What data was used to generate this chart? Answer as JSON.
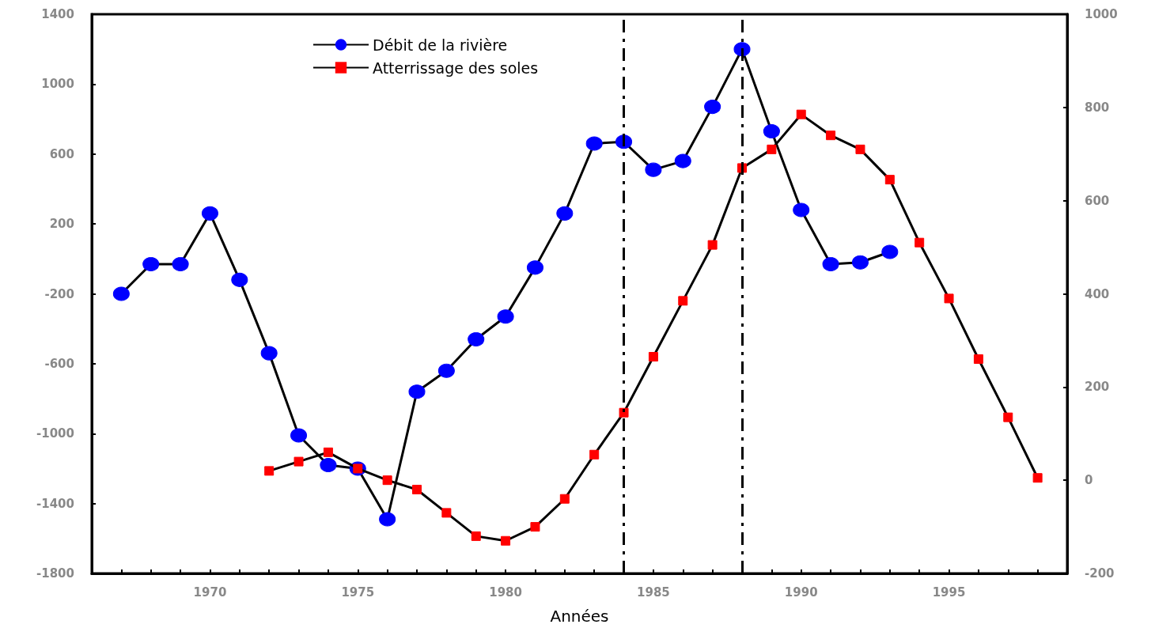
{
  "chart_data": {
    "type": "line",
    "xlabel": "Années",
    "x": [
      1967,
      1968,
      1969,
      1970,
      1971,
      1972,
      1973,
      1974,
      1975,
      1976,
      1977,
      1978,
      1979,
      1980,
      1981,
      1982,
      1983,
      1984,
      1985,
      1986,
      1987,
      1988,
      1989,
      1990,
      1991,
      1992,
      1993,
      1994,
      1995,
      1996,
      1997,
      1998
    ],
    "series": [
      {
        "name": "Débit de la rivière",
        "color": "#0000ff",
        "marker": "circle",
        "values": [
          -200,
          -30,
          -30,
          260,
          -120,
          -540,
          -1010,
          -1180,
          -1200,
          -1490,
          -760,
          -640,
          -460,
          -330,
          -50,
          260,
          660,
          670,
          510,
          560,
          870,
          1200,
          730,
          280,
          -30,
          -20,
          40,
          null,
          null,
          null,
          null,
          null
        ]
      },
      {
        "name": "Atterrissage des soles",
        "color": "#ff0000",
        "marker": "square",
        "axis": "y2",
        "values": [
          null,
          null,
          null,
          null,
          null,
          20,
          40,
          60,
          25,
          0,
          -20,
          -70,
          -120,
          -130,
          -100,
          -40,
          55,
          145,
          265,
          385,
          505,
          670,
          710,
          785,
          740,
          710,
          645,
          510,
          390,
          260,
          135,
          5
        ]
      }
    ],
    "xlim": [
      1966,
      1999
    ],
    "xticks": [
      {
        "value": 1967,
        "label": null
      },
      {
        "value": 1968,
        "label": null
      },
      {
        "value": 1969,
        "label": null
      },
      1970,
      {
        "value": 1971,
        "label": null
      },
      {
        "value": 1972,
        "label": null
      },
      {
        "value": 1973,
        "label": null
      },
      {
        "value": 1974,
        "label": null
      },
      1975,
      {
        "value": 1976,
        "label": null
      },
      {
        "value": 1977,
        "label": null
      },
      {
        "value": 1978,
        "label": null
      },
      {
        "value": 1979,
        "label": null
      },
      1980,
      {
        "value": 1981,
        "label": null
      },
      {
        "value": 1982,
        "label": null
      },
      {
        "value": 1983,
        "label": null
      },
      {
        "value": 1984,
        "label": null
      },
      1985,
      {
        "value": 1986,
        "label": null
      },
      {
        "value": 1987,
        "label": null
      },
      {
        "value": 1988,
        "label": null
      },
      {
        "value": 1989,
        "label": null
      },
      1990,
      {
        "value": 1991,
        "label": null
      },
      {
        "value": 1992,
        "label": null
      },
      {
        "value": 1993,
        "label": null
      },
      {
        "value": 1994,
        "label": null
      },
      1995,
      {
        "value": 1996,
        "label": null
      },
      {
        "value": 1997,
        "label": null
      },
      {
        "value": 1998,
        "label": null
      }
    ],
    "ylim": [
      -1800,
      1400
    ],
    "yticks": [
      -1800,
      -1400,
      -1000,
      -600,
      -200,
      200,
      600,
      1000,
      1400
    ],
    "y2lim": [
      -200,
      1000
    ],
    "y2ticks": [
      -200,
      0,
      200,
      400,
      600,
      800,
      1000
    ],
    "ref_lines": [
      {
        "axis": "x",
        "value": 1984,
        "line_style": "dashed",
        "color": "#000000"
      },
      {
        "axis": "x",
        "value": 1988,
        "line_style": "dashed",
        "color": "#000000"
      }
    ],
    "grid": false,
    "legend": "top left",
    "line_style": "solid"
  }
}
